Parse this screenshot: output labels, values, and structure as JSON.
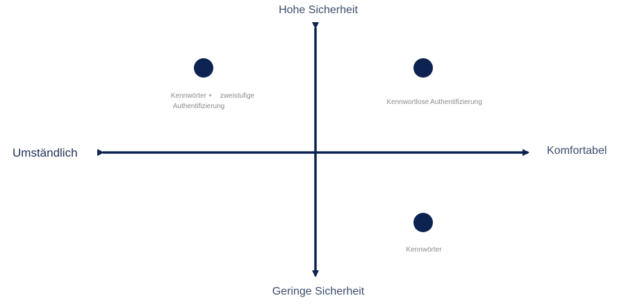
{
  "colors": {
    "axis": "#0c2351",
    "point": "#0c2351",
    "axis_text": "#3d4d6e",
    "point_text": "#8b8b8b"
  },
  "axes": {
    "top_label": "Hohe Sicherheit",
    "bottom_label": "Geringe Sicherheit",
    "left_label": "Umständlich",
    "right_label": "Komfortabel"
  },
  "points": [
    {
      "label_line1": "Kennwörter +    zweistufige",
      "label_line2": "Authentifizierung"
    },
    {
      "label": "Kennwortlose Authentifizierung"
    },
    {
      "label": "Kennwörter"
    }
  ]
}
